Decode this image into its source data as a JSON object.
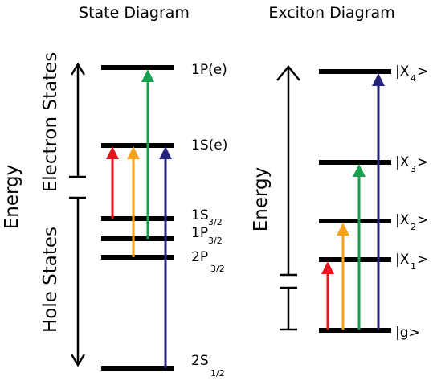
{
  "state_diagram": {
    "title": "State Diagram",
    "energy_label": "Energy",
    "electron_states_label": "Electron States",
    "hole_states_label": "Hole States",
    "levels": {
      "1p_e": "1P(e)",
      "1s_e": "1S(e)",
      "1s32_main": "1S",
      "1s32_sub": "3/2",
      "1p32_main": "1P",
      "1p32_sub": "3/2",
      "2p32_main": "2P",
      "2p32_sub": "3/2",
      "2s12_main": "2S",
      "2s12_sub": "1/2"
    }
  },
  "exciton_diagram": {
    "title": "Exciton Diagram",
    "energy_label": "Energy",
    "levels": {
      "x4_main": "|X",
      "x4_sub": "4",
      "x4_end": ">",
      "x3_main": "|X",
      "x3_sub": "3",
      "x3_end": ">",
      "x2_main": "|X",
      "x2_sub": "2",
      "x2_end": ">",
      "x1_main": "|X",
      "x1_sub": "1",
      "x1_end": ">",
      "g": "|g>"
    }
  },
  "colors": {
    "level": "#000000",
    "red": "#e4161d",
    "orange": "#f5a11a",
    "green": "#16a04e",
    "blue": "#24237d"
  }
}
